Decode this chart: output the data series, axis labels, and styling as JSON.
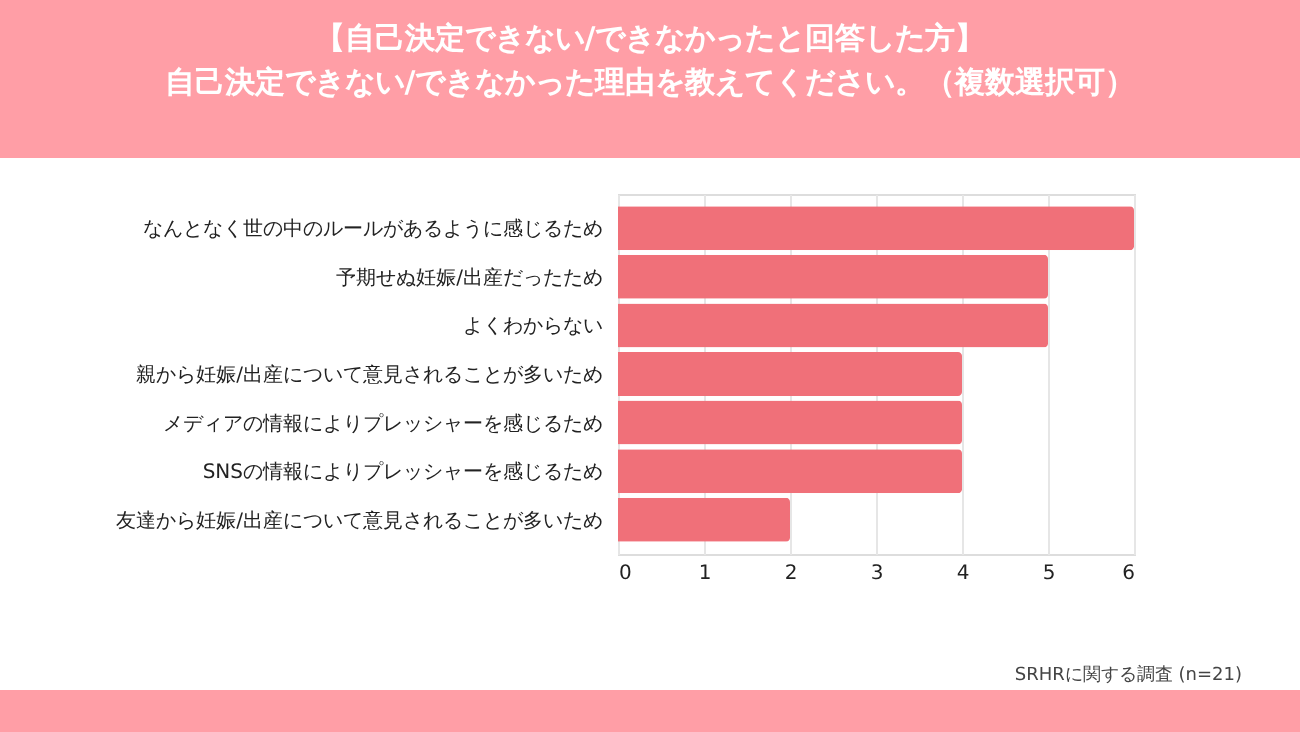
{
  "chart_data": {
    "type": "bar",
    "orientation": "horizontal",
    "title": [
      "【自己決定できない/できなかったと回答した方】",
      "自己決定できない/できなかった理由を教えてください。（複数選択可）"
    ],
    "categories": [
      "なんとなく世の中のルールがあるように感じるため",
      "予期せぬ妊娠/出産だったため",
      "よくわからない",
      "親から妊娠/出産について意見されることが多いため",
      "メディアの情報によりプレッシャーを感じるため",
      "SNSの情報によりプレッシャーを感じるため",
      "友達から妊娠/出産について意見されることが多いため"
    ],
    "values": [
      6,
      5,
      5,
      4,
      4,
      4,
      2
    ],
    "color": "#f07079",
    "xlim": [
      0,
      6
    ],
    "xticks": [
      0,
      1,
      2,
      3,
      4,
      5,
      6
    ],
    "grid": "x",
    "annotations": [
      "SRHRに関する調査 (n=21)"
    ]
  }
}
